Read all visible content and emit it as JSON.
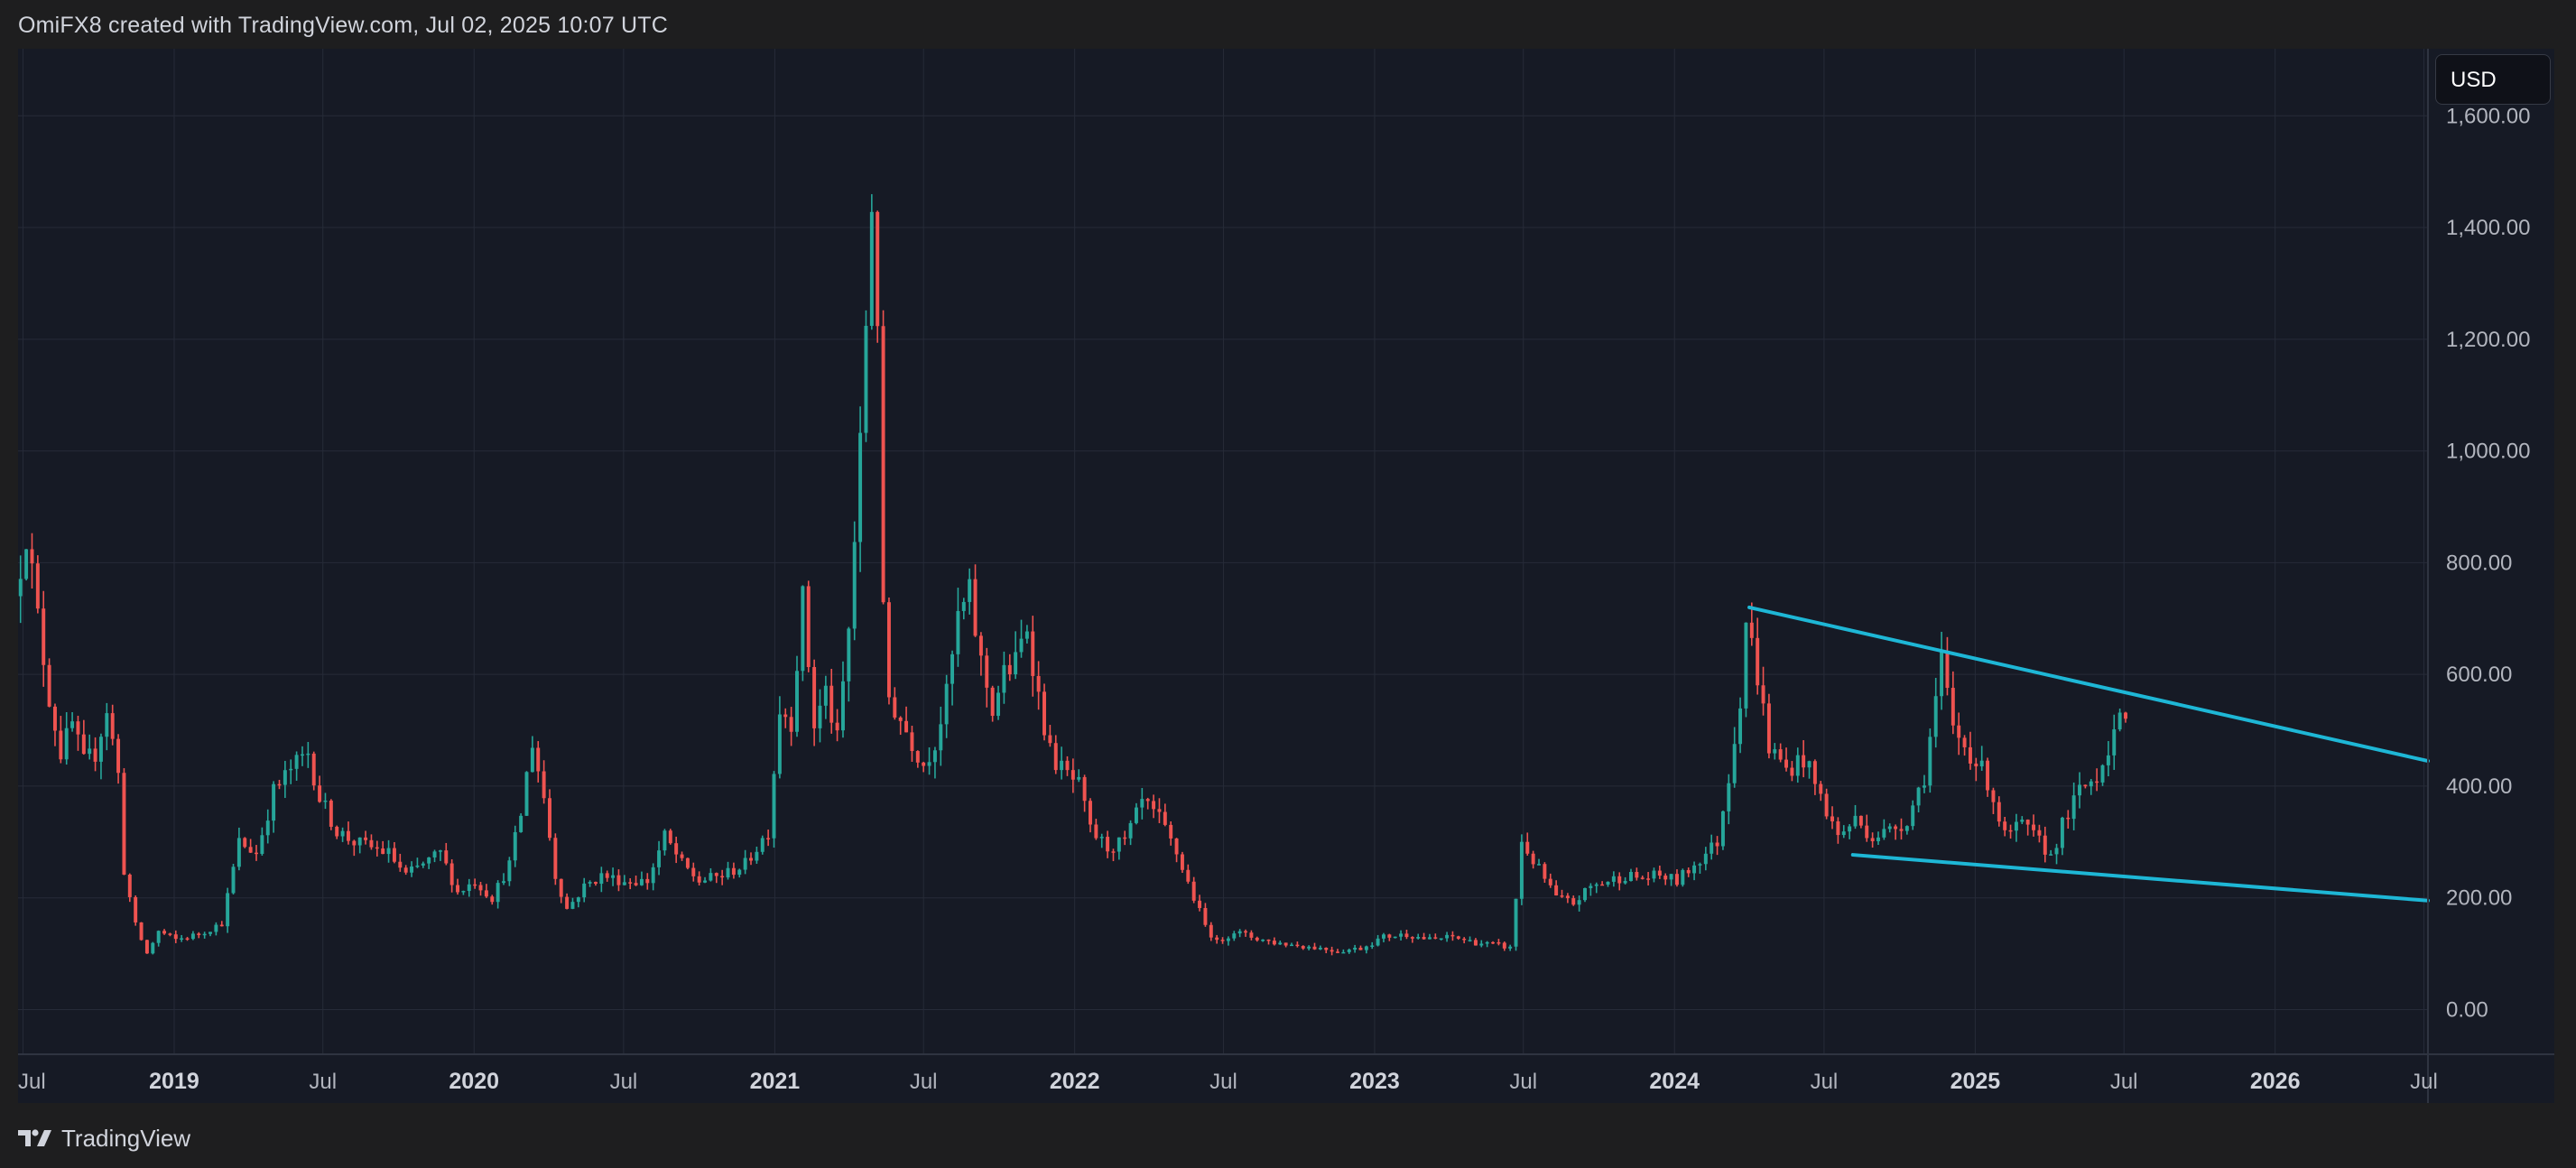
{
  "header": {
    "text": "OmiFX8 created with TradingView.com, Jul 02, 2025 10:07 UTC"
  },
  "currency_button": {
    "label": "USD"
  },
  "footer": {
    "brand": "TradingView",
    "logo_icon": "tradingview-logo-icon"
  },
  "colors": {
    "up": "#26a69a",
    "down": "#ef5350",
    "trendline": "#1eb7d6",
    "background": "#161a25",
    "grid": "#262b38",
    "outer": "#1e1e1f"
  },
  "chart_data": {
    "type": "candlestick",
    "title": "",
    "xlabel": "",
    "ylabel": "",
    "xlim": [
      "2018-06-25",
      "2026-07-06"
    ],
    "ylim": [
      -80,
      1720
    ],
    "grid": true,
    "y_ticks": [
      "0.00",
      "200.00",
      "400.00",
      "600.00",
      "800.00",
      "1,000.00",
      "1,200.00",
      "1,400.00",
      "1,600.00"
    ],
    "x_ticks": [
      {
        "label": "Jul",
        "date": "2018-07-01",
        "major": false
      },
      {
        "label": "2019",
        "date": "2019-01-01",
        "major": true
      },
      {
        "label": "Jul",
        "date": "2019-07-01",
        "major": false
      },
      {
        "label": "2020",
        "date": "2020-01-01",
        "major": true
      },
      {
        "label": "Jul",
        "date": "2020-07-01",
        "major": false
      },
      {
        "label": "2021",
        "date": "2021-01-01",
        "major": true
      },
      {
        "label": "Jul",
        "date": "2021-07-01",
        "major": false
      },
      {
        "label": "2022",
        "date": "2022-01-01",
        "major": true
      },
      {
        "label": "Jul",
        "date": "2022-07-01",
        "major": false
      },
      {
        "label": "2023",
        "date": "2023-01-01",
        "major": true
      },
      {
        "label": "Jul",
        "date": "2023-07-01",
        "major": false
      },
      {
        "label": "2024",
        "date": "2024-01-01",
        "major": true
      },
      {
        "label": "Jul",
        "date": "2024-07-01",
        "major": false
      },
      {
        "label": "2025",
        "date": "2025-01-01",
        "major": true
      },
      {
        "label": "Jul",
        "date": "2025-07-01",
        "major": false
      },
      {
        "label": "2026",
        "date": "2026-01-01",
        "major": true
      },
      {
        "label": "Jul",
        "date": "2026-07-01",
        "major": false
      }
    ],
    "price_path": [
      [
        "2018-06-25",
        740
      ],
      [
        "2018-07-09",
        860
      ],
      [
        "2018-07-23",
        700
      ],
      [
        "2018-08-06",
        560
      ],
      [
        "2018-08-20",
        460
      ],
      [
        "2018-09-03",
        510
      ],
      [
        "2018-09-17",
        440
      ],
      [
        "2018-10-01",
        460
      ],
      [
        "2018-10-15",
        540
      ],
      [
        "2018-10-29",
        420
      ],
      [
        "2018-11-05",
        250
      ],
      [
        "2018-11-19",
        150
      ],
      [
        "2018-12-03",
        100
      ],
      [
        "2018-12-17",
        140
      ],
      [
        "2019-01-07",
        125
      ],
      [
        "2019-02-04",
        135
      ],
      [
        "2019-03-04",
        155
      ],
      [
        "2019-03-25",
        300
      ],
      [
        "2019-04-15",
        280
      ],
      [
        "2019-05-06",
        390
      ],
      [
        "2019-05-27",
        430
      ],
      [
        "2019-06-17",
        460
      ],
      [
        "2019-07-01",
        380
      ],
      [
        "2019-07-22",
        320
      ],
      [
        "2019-08-12",
        300
      ],
      [
        "2019-09-02",
        290
      ],
      [
        "2019-09-23",
        280
      ],
      [
        "2019-10-14",
        240
      ],
      [
        "2019-11-04",
        260
      ],
      [
        "2019-11-25",
        280
      ],
      [
        "2019-12-16",
        210
      ],
      [
        "2020-01-06",
        230
      ],
      [
        "2020-01-27",
        200
      ],
      [
        "2020-02-17",
        260
      ],
      [
        "2020-03-02",
        350
      ],
      [
        "2020-03-09",
        420
      ],
      [
        "2020-03-16",
        480
      ],
      [
        "2020-03-30",
        380
      ],
      [
        "2020-04-13",
        240
      ],
      [
        "2020-04-27",
        180
      ],
      [
        "2020-05-18",
        220
      ],
      [
        "2020-06-08",
        240
      ],
      [
        "2020-07-06",
        230
      ],
      [
        "2020-08-03",
        230
      ],
      [
        "2020-08-24",
        310
      ],
      [
        "2020-09-14",
        260
      ],
      [
        "2020-10-05",
        230
      ],
      [
        "2020-11-02",
        240
      ],
      [
        "2020-11-30",
        260
      ],
      [
        "2020-12-14",
        290
      ],
      [
        "2020-12-28",
        320
      ],
      [
        "2021-01-11",
        540
      ],
      [
        "2021-01-25",
        520
      ],
      [
        "2021-02-08",
        730
      ],
      [
        "2021-02-22",
        510
      ],
      [
        "2021-03-08",
        570
      ],
      [
        "2021-03-22",
        480
      ],
      [
        "2021-04-05",
        680
      ],
      [
        "2021-04-19",
        1000
      ],
      [
        "2021-04-26",
        1230
      ],
      [
        "2021-05-03",
        1450
      ],
      [
        "2021-05-10",
        1250
      ],
      [
        "2021-05-17",
        700
      ],
      [
        "2021-05-24",
        560
      ],
      [
        "2021-06-07",
        520
      ],
      [
        "2021-06-21",
        480
      ],
      [
        "2021-07-05",
        440
      ],
      [
        "2021-07-19",
        480
      ],
      [
        "2021-08-02",
        560
      ],
      [
        "2021-08-16",
        700
      ],
      [
        "2021-08-30",
        740
      ],
      [
        "2021-09-13",
        620
      ],
      [
        "2021-09-27",
        540
      ],
      [
        "2021-10-11",
        600
      ],
      [
        "2021-10-25",
        620
      ],
      [
        "2021-11-08",
        690
      ],
      [
        "2021-11-22",
        560
      ],
      [
        "2021-12-06",
        460
      ],
      [
        "2021-12-20",
        430
      ],
      [
        "2022-01-10",
        400
      ],
      [
        "2022-01-24",
        320
      ],
      [
        "2022-02-14",
        290
      ],
      [
        "2022-03-07",
        300
      ],
      [
        "2022-03-28",
        370
      ],
      [
        "2022-04-18",
        340
      ],
      [
        "2022-05-09",
        280
      ],
      [
        "2022-05-30",
        200
      ],
      [
        "2022-06-13",
        150
      ],
      [
        "2022-06-27",
        120
      ],
      [
        "2022-07-18",
        140
      ],
      [
        "2022-08-08",
        130
      ],
      [
        "2022-09-05",
        120
      ],
      [
        "2022-10-03",
        115
      ],
      [
        "2022-10-31",
        110
      ],
      [
        "2022-11-21",
        105
      ],
      [
        "2022-12-19",
        110
      ],
      [
        "2023-01-16",
        130
      ],
      [
        "2023-02-13",
        135
      ],
      [
        "2023-03-13",
        125
      ],
      [
        "2023-04-10",
        130
      ],
      [
        "2023-05-08",
        120
      ],
      [
        "2023-06-05",
        115
      ],
      [
        "2023-06-19",
        110
      ],
      [
        "2023-06-26",
        200
      ],
      [
        "2023-07-03",
        300
      ],
      [
        "2023-07-24",
        250
      ],
      [
        "2023-08-14",
        200
      ],
      [
        "2023-09-04",
        190
      ],
      [
        "2023-09-25",
        220
      ],
      [
        "2023-10-16",
        230
      ],
      [
        "2023-11-06",
        240
      ],
      [
        "2023-11-27",
        235
      ],
      [
        "2023-12-18",
        240
      ],
      [
        "2024-01-08",
        230
      ],
      [
        "2024-02-05",
        270
      ],
      [
        "2024-02-26",
        300
      ],
      [
        "2024-03-11",
        420
      ],
      [
        "2024-03-25",
        560
      ],
      [
        "2024-04-01",
        700
      ],
      [
        "2024-04-15",
        600
      ],
      [
        "2024-04-29",
        470
      ],
      [
        "2024-05-20",
        430
      ],
      [
        "2024-06-10",
        450
      ],
      [
        "2024-07-01",
        380
      ],
      [
        "2024-07-22",
        310
      ],
      [
        "2024-08-12",
        340
      ],
      [
        "2024-09-02",
        310
      ],
      [
        "2024-09-23",
        320
      ],
      [
        "2024-10-14",
        340
      ],
      [
        "2024-11-04",
        420
      ],
      [
        "2024-11-25",
        620
      ],
      [
        "2024-12-09",
        500
      ],
      [
        "2024-12-30",
        460
      ],
      [
        "2025-01-20",
        410
      ],
      [
        "2025-02-10",
        310
      ],
      [
        "2025-03-03",
        330
      ],
      [
        "2025-03-24",
        300
      ],
      [
        "2025-04-07",
        275
      ],
      [
        "2025-04-21",
        330
      ],
      [
        "2025-05-12",
        390
      ],
      [
        "2025-06-02",
        420
      ],
      [
        "2025-06-23",
        500
      ],
      [
        "2025-06-30",
        510
      ]
    ],
    "trendlines": [
      {
        "from": [
          "2024-04-01",
          720
        ],
        "to": [
          "2026-07-06",
          445
        ]
      },
      {
        "from": [
          "2024-08-05",
          277
        ],
        "to": [
          "2026-07-06",
          195
        ]
      }
    ]
  }
}
